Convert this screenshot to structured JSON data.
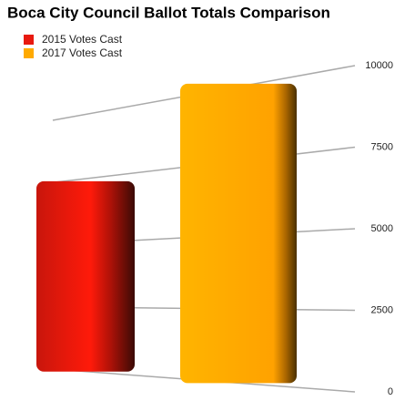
{
  "chart_data": {
    "type": "bar",
    "title": "Boca City Council Ballot Totals Comparison",
    "categories": [
      null
    ],
    "series": [
      {
        "name": "2015 Votes Cast",
        "color": "#e8190f",
        "values": [
          7400
        ]
      },
      {
        "name": "2017 Votes Cast",
        "color": "#ffaa00",
        "values": [
          10100
        ]
      }
    ],
    "ylim": [
      0,
      10000
    ],
    "yticks": [
      0,
      2500,
      5000,
      7500,
      10000
    ],
    "grid": true,
    "legend": "top-left"
  }
}
